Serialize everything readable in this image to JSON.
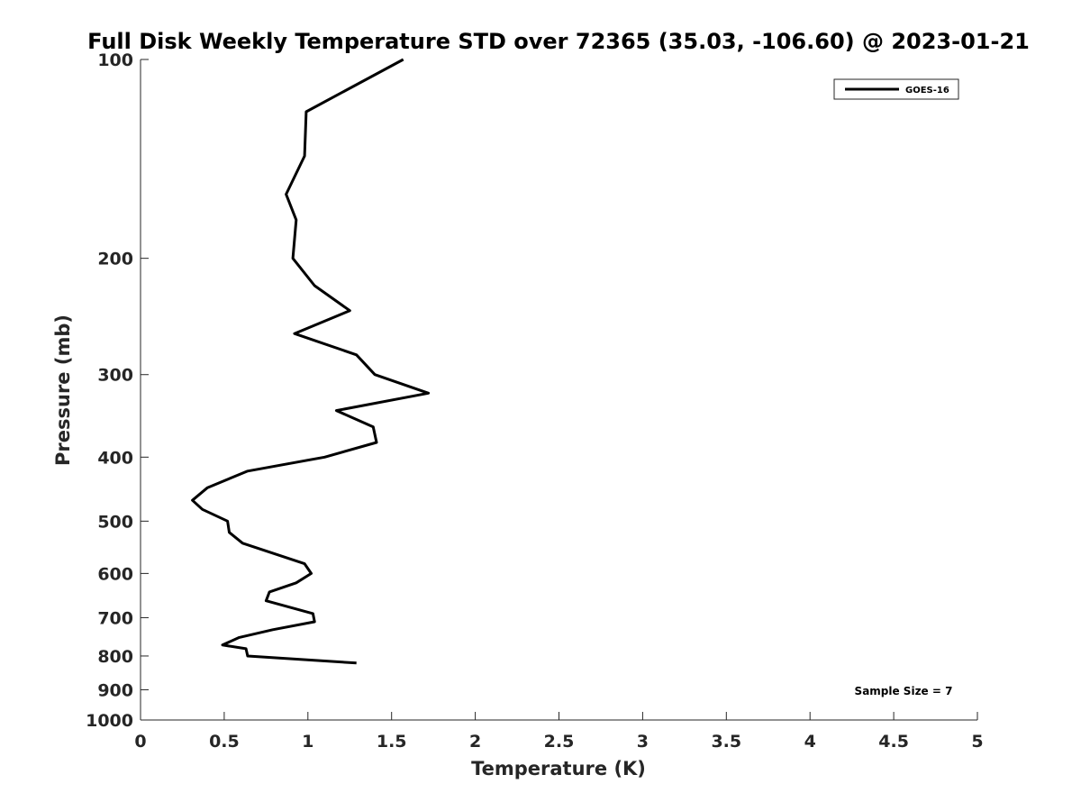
{
  "chart_data": {
    "type": "line",
    "title": "Full Disk Weekly Temperature STD over 72365 (35.03, -106.60) @ 2023-01-21",
    "xlabel": "Temperature (K)",
    "ylabel": "Pressure (mb)",
    "xlim": [
      0,
      5
    ],
    "ylim": [
      1000,
      100
    ],
    "y_scale": "log",
    "y_reversed": true,
    "x_ticks": [
      "0",
      "0.5",
      "1",
      "1.5",
      "2",
      "2.5",
      "3",
      "3.5",
      "4",
      "4.5",
      "5"
    ],
    "y_ticks": [
      "100",
      "200",
      "300",
      "400",
      "500",
      "600",
      "700",
      "800",
      "900",
      "1000"
    ],
    "grid": false,
    "legend_position": "top-right",
    "annotation": "Sample Size = 7",
    "series": [
      {
        "name": "GOES-16",
        "color": "#000000",
        "x": [
          1.57,
          0.99,
          0.98,
          0.87,
          0.93,
          0.91,
          1.04,
          1.25,
          0.92,
          1.29,
          1.4,
          1.72,
          1.17,
          1.39,
          1.41,
          1.1,
          0.64,
          0.4,
          0.31,
          0.37,
          0.52,
          0.53,
          0.61,
          0.98,
          1.02,
          0.93,
          0.77,
          0.75,
          1.03,
          1.04,
          0.79,
          0.59,
          0.49,
          0.63,
          0.64,
          1.29
        ],
        "y": [
          100,
          120,
          140,
          160,
          175,
          200,
          220,
          240,
          260,
          280,
          300,
          320,
          340,
          360,
          380,
          400,
          420,
          445,
          465,
          480,
          500,
          520,
          540,
          580,
          600,
          620,
          640,
          660,
          690,
          710,
          730,
          750,
          770,
          780,
          800,
          820
        ]
      }
    ]
  }
}
